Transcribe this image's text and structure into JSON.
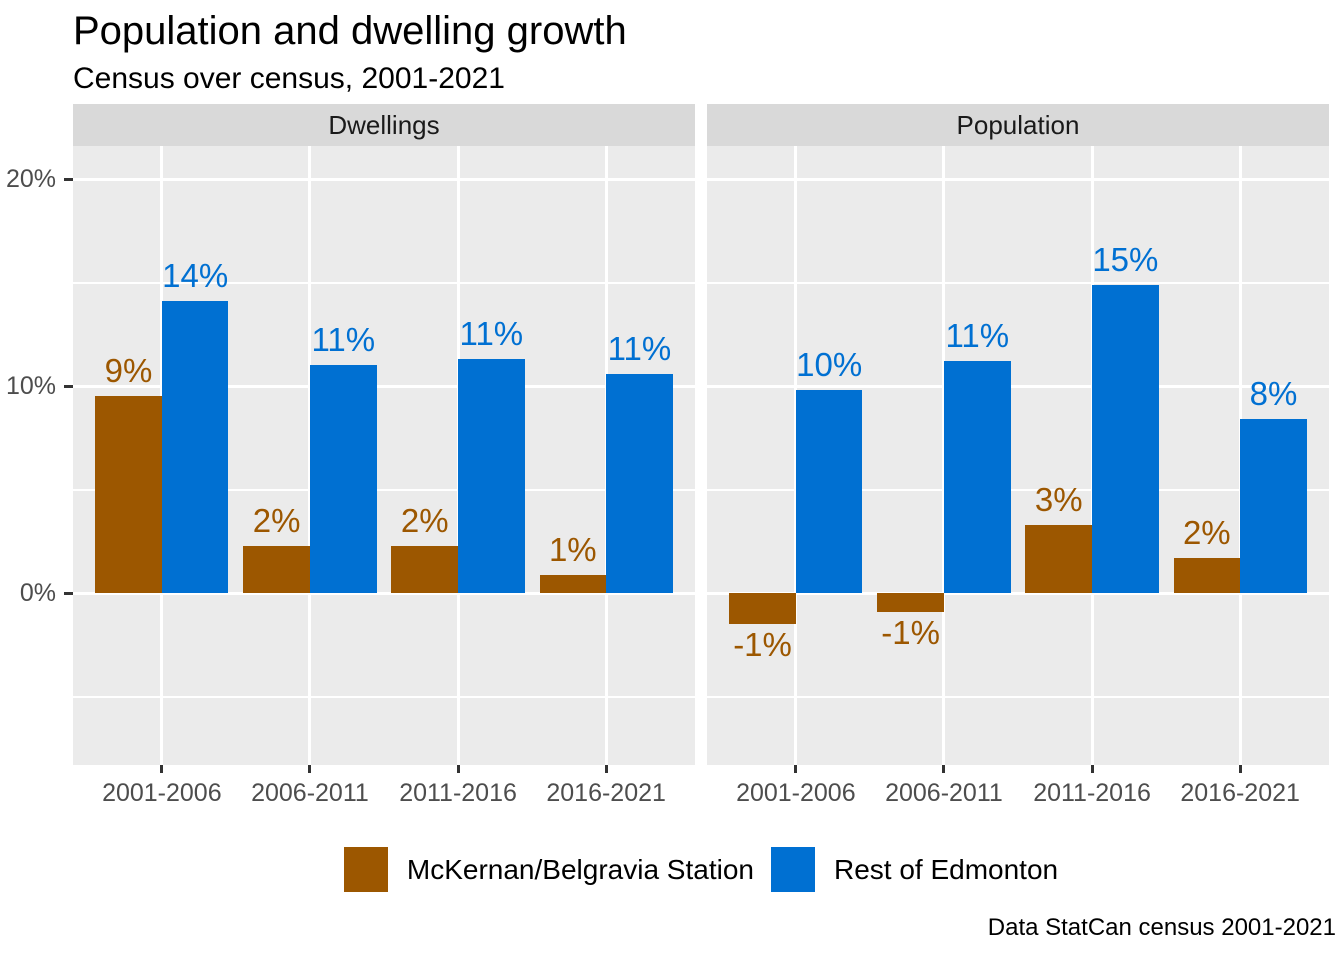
{
  "title": "Population and dwelling growth",
  "subtitle": "Census over census, 2001-2021",
  "caption": "Data StatCan census 2001-2021",
  "colors": {
    "series": [
      "#9C5700",
      "#0070D2"
    ],
    "panel_bg": "#EBEBEB",
    "strip_bg": "#D9D9D9",
    "grid": "#FFFFFF",
    "axis_text": "#4D4D4D",
    "tick": "#333333",
    "strip_text": "#1A1A1A",
    "title_text": "#000000"
  },
  "legend": {
    "items": [
      {
        "label": "McKernan/Belgravia Station",
        "color": "#9C5700"
      },
      {
        "label": "Rest of Edmonton",
        "color": "#0070D2"
      }
    ]
  },
  "chart_data": {
    "type": "bar",
    "title": "Population and dwelling growth",
    "subtitle": "Census over census, 2001-2021",
    "caption": "Data StatCan census 2001-2021",
    "xlabel": "",
    "ylabel": "",
    "grid": true,
    "legend_position": "bottom",
    "categories": [
      "2001-2006",
      "2006-2011",
      "2011-2016",
      "2016-2021"
    ],
    "ylim": [
      -8.3,
      21.6
    ],
    "y_ticks": [
      {
        "label": "0%",
        "value": 0
      },
      {
        "label": "10%",
        "value": 10
      },
      {
        "label": "20%",
        "value": 20
      }
    ],
    "y_minor": [
      -5,
      5,
      15
    ],
    "facets": [
      {
        "label": "Dwellings",
        "series": [
          {
            "name": "McKernan/Belgravia Station",
            "values": [
              9.5,
              2.3,
              2.3,
              0.9
            ],
            "labels": [
              "9%",
              "2%",
              "2%",
              "1%"
            ]
          },
          {
            "name": "Rest of Edmonton",
            "values": [
              14.1,
              11.0,
              11.3,
              10.6
            ],
            "labels": [
              "14%",
              "11%",
              "11%",
              "11%"
            ]
          }
        ]
      },
      {
        "label": "Population",
        "series": [
          {
            "name": "McKernan/Belgravia Station",
            "values": [
              -1.5,
              -0.9,
              3.3,
              1.7
            ],
            "labels": [
              "-1%",
              "-1%",
              "3%",
              "2%"
            ]
          },
          {
            "name": "Rest of Edmonton",
            "values": [
              9.8,
              11.2,
              14.9,
              8.4
            ],
            "labels": [
              "10%",
              "11%",
              "15%",
              "8%"
            ]
          }
        ]
      }
    ]
  }
}
